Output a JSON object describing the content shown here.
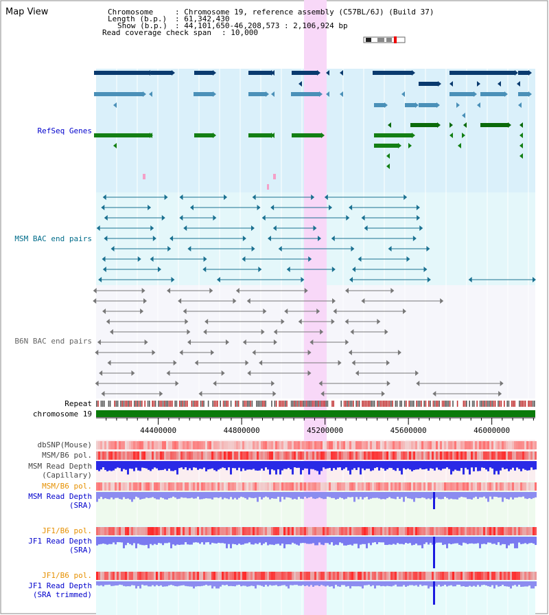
{
  "page": {
    "title": "Map View"
  },
  "header": {
    "chromosome_label": "Chromosome",
    "chromosome_value": ": Chromosome 19, reference assembly (C57BL/6J) (Build 37)",
    "length_label": "Length (b.p.)",
    "length_value": ": 61,342,430",
    "show_label": "Show (b.p.)",
    "show_value": ": 44,101,650-46,208,573 : 2,106,924 bp",
    "span_label": "Read coverage check span",
    "span_value": ": 10,000"
  },
  "tracks": {
    "refseq": "RefSeq Genes",
    "msm_bac": "MSM BAC end pairs",
    "b6n_bac": "B6N BAC end pairs",
    "repeat": "Repeat",
    "chromosome": "chromosome 19",
    "dbsnp": "dbSNP(Mouse)",
    "msm_b6_pol_1": "MSM/B6 pol.",
    "msm_depth_cap_1": "MSM Read Depth",
    "msm_depth_cap_2": "(Capillary)",
    "msm_b6_pol_2": "MSM/B6 pol.",
    "msm_depth_sra_1": "MSM Read Depth",
    "msm_depth_sra_2": "(SRA)",
    "jf1_pol_1": "JF1/B6 pol.",
    "jf1_depth_1": "JF1 Read Depth",
    "jf1_depth_2": "(SRA)",
    "jf1_pol_2": "JF1/B6 pol.",
    "jf1_trim_1": "JF1 Read Depth",
    "jf1_trim_2": "(SRA trimmed)"
  },
  "axis": {
    "ticks": [
      44400000,
      44800000,
      45200000,
      45600000,
      46000000
    ],
    "range": [
      44101650,
      46208573
    ]
  },
  "colors": {
    "refseq_label": "#0000cc",
    "msm_label": "#006c8a",
    "b6n_label": "#666666",
    "orange_label": "#e69000",
    "blue_label": "#0000cc",
    "highlight": "#f8d8f8"
  }
}
